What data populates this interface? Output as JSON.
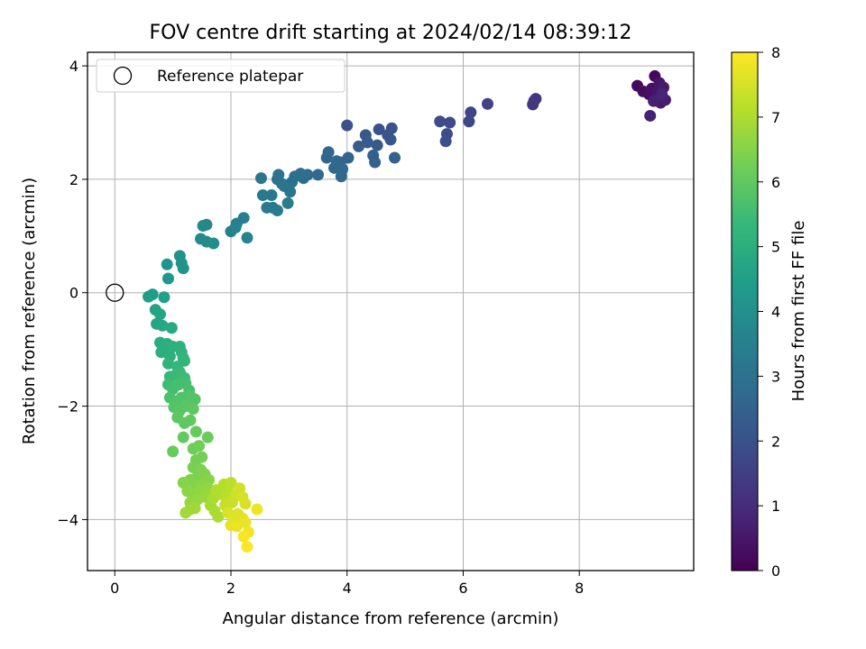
{
  "chart_data": {
    "type": "scatter",
    "title": "FOV centre drift starting at 2024/02/14 08:39:12",
    "xlabel": "Angular distance from reference (arcmin)",
    "ylabel": "Rotation from reference (arcmin)",
    "xlim": [
      -0.47,
      9.97
    ],
    "ylim": [
      -4.9,
      4.24
    ],
    "xticks": [
      0,
      2,
      4,
      6,
      8
    ],
    "yticks": [
      -4,
      -2,
      0,
      2,
      4
    ],
    "xtick_labels": [
      "0",
      "2",
      "4",
      "6",
      "8"
    ],
    "ytick_labels": [
      "−4",
      "−2",
      "0",
      "2",
      "4"
    ],
    "grid": true,
    "legend": {
      "location": "upper-left",
      "entries": [
        "Reference platepar"
      ]
    },
    "reference_point": {
      "x": 0,
      "y": 0,
      "label": "Reference platepar",
      "marker": "open-circle"
    },
    "colorbar": {
      "label": "Hours from first FF file",
      "colormap": "viridis",
      "range": [
        0,
        8
      ],
      "ticks": [
        0,
        1,
        2,
        3,
        4,
        5,
        6,
        7,
        8
      ],
      "colors": [
        "#440154",
        "#482878",
        "#3e4989",
        "#31688e",
        "#26828e",
        "#1f9e89",
        "#35b779",
        "#6ece58",
        "#b5de2b",
        "#fde725"
      ]
    },
    "points": [
      {
        "x": 9.0,
        "y": 3.65,
        "h": 0.2
      },
      {
        "x": 9.1,
        "y": 3.55,
        "h": 0.25
      },
      {
        "x": 9.2,
        "y": 3.5,
        "h": 0.3
      },
      {
        "x": 9.25,
        "y": 3.6,
        "h": 0.35
      },
      {
        "x": 9.3,
        "y": 3.82,
        "h": 0.15
      },
      {
        "x": 9.33,
        "y": 3.45,
        "h": 0.4
      },
      {
        "x": 9.35,
        "y": 3.55,
        "h": 0.45
      },
      {
        "x": 9.38,
        "y": 3.7,
        "h": 0.5
      },
      {
        "x": 9.4,
        "y": 3.35,
        "h": 0.55
      },
      {
        "x": 9.45,
        "y": 3.62,
        "h": 0.6
      },
      {
        "x": 9.48,
        "y": 3.4,
        "h": 0.65
      },
      {
        "x": 9.28,
        "y": 3.38,
        "h": 0.7
      },
      {
        "x": 9.22,
        "y": 3.12,
        "h": 0.75
      },
      {
        "x": 9.42,
        "y": 3.5,
        "h": 0.8
      },
      {
        "x": 7.25,
        "y": 3.42,
        "h": 1.2
      },
      {
        "x": 7.2,
        "y": 3.32,
        "h": 1.25
      },
      {
        "x": 7.22,
        "y": 3.38,
        "h": 1.3
      },
      {
        "x": 6.42,
        "y": 3.33,
        "h": 1.6
      },
      {
        "x": 6.13,
        "y": 3.18,
        "h": 1.7
      },
      {
        "x": 6.1,
        "y": 3.02,
        "h": 1.75
      },
      {
        "x": 5.77,
        "y": 3.0,
        "h": 1.8
      },
      {
        "x": 5.6,
        "y": 3.02,
        "h": 1.85
      },
      {
        "x": 5.72,
        "y": 2.8,
        "h": 1.9
      },
      {
        "x": 5.7,
        "y": 2.67,
        "h": 1.95
      },
      {
        "x": 4.77,
        "y": 2.9,
        "h": 2.0
      },
      {
        "x": 4.55,
        "y": 2.88,
        "h": 2.05
      },
      {
        "x": 4.7,
        "y": 2.78,
        "h": 2.1
      },
      {
        "x": 4.75,
        "y": 2.7,
        "h": 2.15
      },
      {
        "x": 4.32,
        "y": 2.78,
        "h": 2.2
      },
      {
        "x": 4.52,
        "y": 2.6,
        "h": 2.25
      },
      {
        "x": 4.35,
        "y": 2.65,
        "h": 2.3
      },
      {
        "x": 4.2,
        "y": 2.58,
        "h": 2.35
      },
      {
        "x": 4.45,
        "y": 2.42,
        "h": 2.4
      },
      {
        "x": 4.48,
        "y": 2.3,
        "h": 2.45
      },
      {
        "x": 4.82,
        "y": 2.38,
        "h": 2.5
      },
      {
        "x": 4.0,
        "y": 2.95,
        "h": 2.0
      },
      {
        "x": 4.02,
        "y": 2.38,
        "h": 2.55
      },
      {
        "x": 3.88,
        "y": 2.3,
        "h": 2.6
      },
      {
        "x": 3.78,
        "y": 2.2,
        "h": 2.65
      },
      {
        "x": 3.9,
        "y": 2.05,
        "h": 2.7
      },
      {
        "x": 3.92,
        "y": 2.18,
        "h": 2.75
      },
      {
        "x": 3.68,
        "y": 2.48,
        "h": 2.6
      },
      {
        "x": 3.65,
        "y": 2.38,
        "h": 2.65
      },
      {
        "x": 3.82,
        "y": 2.32,
        "h": 2.7
      },
      {
        "x": 3.32,
        "y": 2.08,
        "h": 2.8
      },
      {
        "x": 3.25,
        "y": 2.02,
        "h": 2.85
      },
      {
        "x": 3.1,
        "y": 2.05,
        "h": 2.9
      },
      {
        "x": 3.2,
        "y": 2.1,
        "h": 2.9
      },
      {
        "x": 3.5,
        "y": 2.08,
        "h": 2.75
      },
      {
        "x": 3.05,
        "y": 1.95,
        "h": 2.95
      },
      {
        "x": 2.88,
        "y": 1.92,
        "h": 3.0
      },
      {
        "x": 2.8,
        "y": 2.0,
        "h": 3.0
      },
      {
        "x": 2.82,
        "y": 2.08,
        "h": 3.05
      },
      {
        "x": 3.02,
        "y": 1.78,
        "h": 3.1
      },
      {
        "x": 2.92,
        "y": 1.88,
        "h": 3.1
      },
      {
        "x": 2.52,
        "y": 2.02,
        "h": 3.15
      },
      {
        "x": 2.55,
        "y": 1.72,
        "h": 3.2
      },
      {
        "x": 2.7,
        "y": 1.72,
        "h": 3.2
      },
      {
        "x": 2.62,
        "y": 1.5,
        "h": 3.25
      },
      {
        "x": 2.72,
        "y": 1.5,
        "h": 3.25
      },
      {
        "x": 2.8,
        "y": 1.45,
        "h": 3.3
      },
      {
        "x": 2.98,
        "y": 1.58,
        "h": 3.3
      },
      {
        "x": 2.22,
        "y": 1.32,
        "h": 3.4
      },
      {
        "x": 2.1,
        "y": 1.22,
        "h": 3.45
      },
      {
        "x": 2.0,
        "y": 1.08,
        "h": 3.5
      },
      {
        "x": 2.08,
        "y": 1.15,
        "h": 3.55
      },
      {
        "x": 2.28,
        "y": 0.97,
        "h": 3.6
      },
      {
        "x": 1.58,
        "y": 1.2,
        "h": 3.7
      },
      {
        "x": 1.52,
        "y": 1.18,
        "h": 3.75
      },
      {
        "x": 1.48,
        "y": 0.95,
        "h": 3.8
      },
      {
        "x": 1.58,
        "y": 0.9,
        "h": 3.85
      },
      {
        "x": 1.7,
        "y": 0.87,
        "h": 3.9
      },
      {
        "x": 1.12,
        "y": 0.65,
        "h": 4.0
      },
      {
        "x": 1.15,
        "y": 0.52,
        "h": 4.05
      },
      {
        "x": 1.18,
        "y": 0.43,
        "h": 4.1
      },
      {
        "x": 0.9,
        "y": 0.5,
        "h": 4.15
      },
      {
        "x": 0.92,
        "y": 0.25,
        "h": 4.2
      },
      {
        "x": 0.58,
        "y": -0.07,
        "h": 4.4
      },
      {
        "x": 0.65,
        "y": -0.03,
        "h": 4.45
      },
      {
        "x": 0.85,
        "y": -0.08,
        "h": 4.5
      },
      {
        "x": 0.7,
        "y": -0.3,
        "h": 4.6
      },
      {
        "x": 0.78,
        "y": -0.38,
        "h": 4.65
      },
      {
        "x": 0.72,
        "y": -0.55,
        "h": 4.7
      },
      {
        "x": 0.82,
        "y": -0.58,
        "h": 4.75
      },
      {
        "x": 0.98,
        "y": -0.62,
        "h": 4.8
      },
      {
        "x": 0.78,
        "y": -0.88,
        "h": 4.9
      },
      {
        "x": 0.85,
        "y": -0.95,
        "h": 4.95
      },
      {
        "x": 0.9,
        "y": -0.9,
        "h": 5.0
      },
      {
        "x": 0.8,
        "y": -1.05,
        "h": 5.0
      },
      {
        "x": 0.95,
        "y": -1.12,
        "h": 5.05
      },
      {
        "x": 1.0,
        "y": -0.95,
        "h": 5.1
      },
      {
        "x": 1.12,
        "y": -0.95,
        "h": 5.1
      },
      {
        "x": 1.15,
        "y": -1.05,
        "h": 5.15
      },
      {
        "x": 1.18,
        "y": -1.15,
        "h": 5.2
      },
      {
        "x": 0.92,
        "y": -1.25,
        "h": 5.2
      },
      {
        "x": 1.08,
        "y": -1.3,
        "h": 5.25
      },
      {
        "x": 1.2,
        "y": -1.2,
        "h": 5.3
      },
      {
        "x": 0.95,
        "y": -1.48,
        "h": 5.35
      },
      {
        "x": 1.05,
        "y": -1.45,
        "h": 5.4
      },
      {
        "x": 1.12,
        "y": -1.4,
        "h": 5.45
      },
      {
        "x": 1.2,
        "y": -1.5,
        "h": 5.5
      },
      {
        "x": 0.92,
        "y": -1.62,
        "h": 5.5
      },
      {
        "x": 1.0,
        "y": -1.7,
        "h": 5.55
      },
      {
        "x": 1.1,
        "y": -1.62,
        "h": 5.6
      },
      {
        "x": 1.22,
        "y": -1.6,
        "h": 5.6
      },
      {
        "x": 1.28,
        "y": -1.72,
        "h": 5.65
      },
      {
        "x": 0.95,
        "y": -1.85,
        "h": 5.7
      },
      {
        "x": 1.05,
        "y": -1.92,
        "h": 5.75
      },
      {
        "x": 1.15,
        "y": -1.85,
        "h": 5.75
      },
      {
        "x": 1.3,
        "y": -1.82,
        "h": 5.8
      },
      {
        "x": 1.38,
        "y": -1.88,
        "h": 5.8
      },
      {
        "x": 1.02,
        "y": -2.02,
        "h": 5.85
      },
      {
        "x": 1.12,
        "y": -2.08,
        "h": 5.9
      },
      {
        "x": 1.22,
        "y": -2.0,
        "h": 5.9
      },
      {
        "x": 1.35,
        "y": -2.05,
        "h": 5.95
      },
      {
        "x": 1.08,
        "y": -2.2,
        "h": 5.95
      },
      {
        "x": 1.2,
        "y": -2.3,
        "h": 6.0
      },
      {
        "x": 1.3,
        "y": -2.25,
        "h": 6.0
      },
      {
        "x": 1.18,
        "y": -2.55,
        "h": 6.05
      },
      {
        "x": 1.4,
        "y": -2.45,
        "h": 6.1
      },
      {
        "x": 1.6,
        "y": -2.55,
        "h": 6.15
      },
      {
        "x": 1.0,
        "y": -2.8,
        "h": 6.1
      },
      {
        "x": 1.35,
        "y": -2.75,
        "h": 6.2
      },
      {
        "x": 1.45,
        "y": -2.7,
        "h": 6.25
      },
      {
        "x": 1.4,
        "y": -2.95,
        "h": 6.3
      },
      {
        "x": 1.5,
        "y": -2.9,
        "h": 6.3
      },
      {
        "x": 1.35,
        "y": -3.08,
        "h": 6.35
      },
      {
        "x": 1.48,
        "y": -3.12,
        "h": 6.4
      },
      {
        "x": 1.42,
        "y": -3.25,
        "h": 6.4
      },
      {
        "x": 1.55,
        "y": -3.2,
        "h": 6.45
      },
      {
        "x": 1.3,
        "y": -3.3,
        "h": 6.45
      },
      {
        "x": 1.18,
        "y": -3.35,
        "h": 6.5
      },
      {
        "x": 1.4,
        "y": -3.4,
        "h": 6.5
      },
      {
        "x": 1.55,
        "y": -3.35,
        "h": 6.55
      },
      {
        "x": 1.62,
        "y": -3.3,
        "h": 6.55
      },
      {
        "x": 1.25,
        "y": -3.5,
        "h": 6.6
      },
      {
        "x": 1.35,
        "y": -3.55,
        "h": 6.6
      },
      {
        "x": 1.48,
        "y": -3.48,
        "h": 6.65
      },
      {
        "x": 1.6,
        "y": -3.45,
        "h": 6.65
      },
      {
        "x": 1.3,
        "y": -3.7,
        "h": 6.7
      },
      {
        "x": 1.42,
        "y": -3.65,
        "h": 6.7
      },
      {
        "x": 1.55,
        "y": -3.6,
        "h": 6.75
      },
      {
        "x": 1.65,
        "y": -3.55,
        "h": 6.75
      },
      {
        "x": 1.3,
        "y": -3.82,
        "h": 6.8
      },
      {
        "x": 1.38,
        "y": -3.8,
        "h": 6.85
      },
      {
        "x": 1.22,
        "y": -3.88,
        "h": 6.85
      },
      {
        "x": 1.65,
        "y": -3.75,
        "h": 6.9
      },
      {
        "x": 1.72,
        "y": -3.85,
        "h": 6.95
      },
      {
        "x": 1.78,
        "y": -3.95,
        "h": 7.0
      },
      {
        "x": 1.7,
        "y": -3.62,
        "h": 7.0
      },
      {
        "x": 1.82,
        "y": -3.55,
        "h": 7.05
      },
      {
        "x": 1.75,
        "y": -3.48,
        "h": 7.05
      },
      {
        "x": 1.88,
        "y": -3.38,
        "h": 7.1
      },
      {
        "x": 1.95,
        "y": -3.5,
        "h": 7.15
      },
      {
        "x": 2.0,
        "y": -3.35,
        "h": 7.2
      },
      {
        "x": 1.92,
        "y": -3.62,
        "h": 7.2
      },
      {
        "x": 2.05,
        "y": -3.6,
        "h": 7.25
      },
      {
        "x": 1.9,
        "y": -3.75,
        "h": 7.3
      },
      {
        "x": 2.02,
        "y": -3.7,
        "h": 7.35
      },
      {
        "x": 2.1,
        "y": -3.55,
        "h": 7.4
      },
      {
        "x": 2.15,
        "y": -3.45,
        "h": 7.45
      },
      {
        "x": 2.2,
        "y": -3.6,
        "h": 7.5
      },
      {
        "x": 2.25,
        "y": -3.72,
        "h": 7.55
      },
      {
        "x": 1.95,
        "y": -3.88,
        "h": 7.55
      },
      {
        "x": 2.05,
        "y": -3.95,
        "h": 7.6
      },
      {
        "x": 2.12,
        "y": -3.9,
        "h": 7.6
      },
      {
        "x": 2.2,
        "y": -3.98,
        "h": 7.65
      },
      {
        "x": 2.0,
        "y": -4.1,
        "h": 7.7
      },
      {
        "x": 2.1,
        "y": -4.12,
        "h": 7.75
      },
      {
        "x": 2.25,
        "y": -4.05,
        "h": 7.75
      },
      {
        "x": 2.45,
        "y": -3.82,
        "h": 7.8
      },
      {
        "x": 2.3,
        "y": -4.22,
        "h": 7.85
      },
      {
        "x": 2.22,
        "y": -4.3,
        "h": 7.9
      },
      {
        "x": 2.28,
        "y": -4.48,
        "h": 7.95
      }
    ]
  }
}
